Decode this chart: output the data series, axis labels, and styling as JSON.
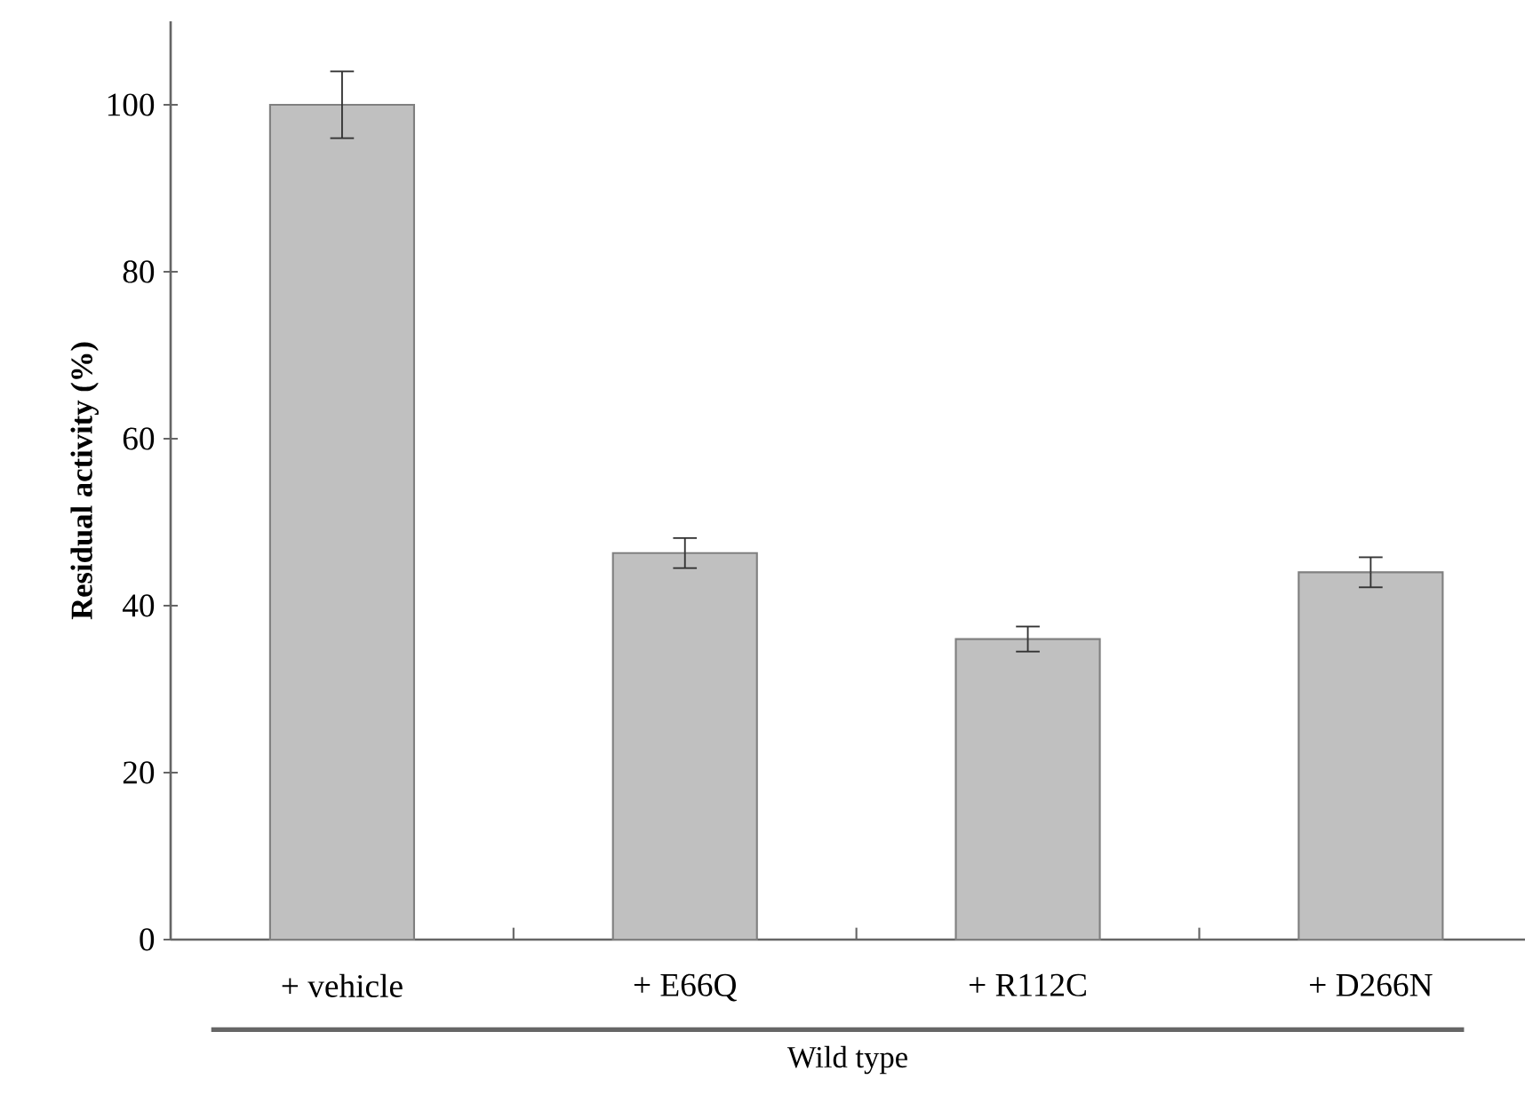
{
  "chart_data": {
    "type": "bar",
    "categories": [
      "+ vehicle",
      "+ E66Q",
      "+ R112C",
      "+ D266N"
    ],
    "values": [
      100,
      46.3,
      36.0,
      44.0
    ],
    "errors": [
      4,
      1.8,
      1.5,
      1.8
    ],
    "color": "#c0c0c0",
    "xlabel": "Wild type",
    "ylabel": "Residual activity (%)",
    "ylim": [
      0,
      110
    ],
    "yticks": [
      0,
      20,
      40,
      60,
      80,
      100
    ]
  }
}
